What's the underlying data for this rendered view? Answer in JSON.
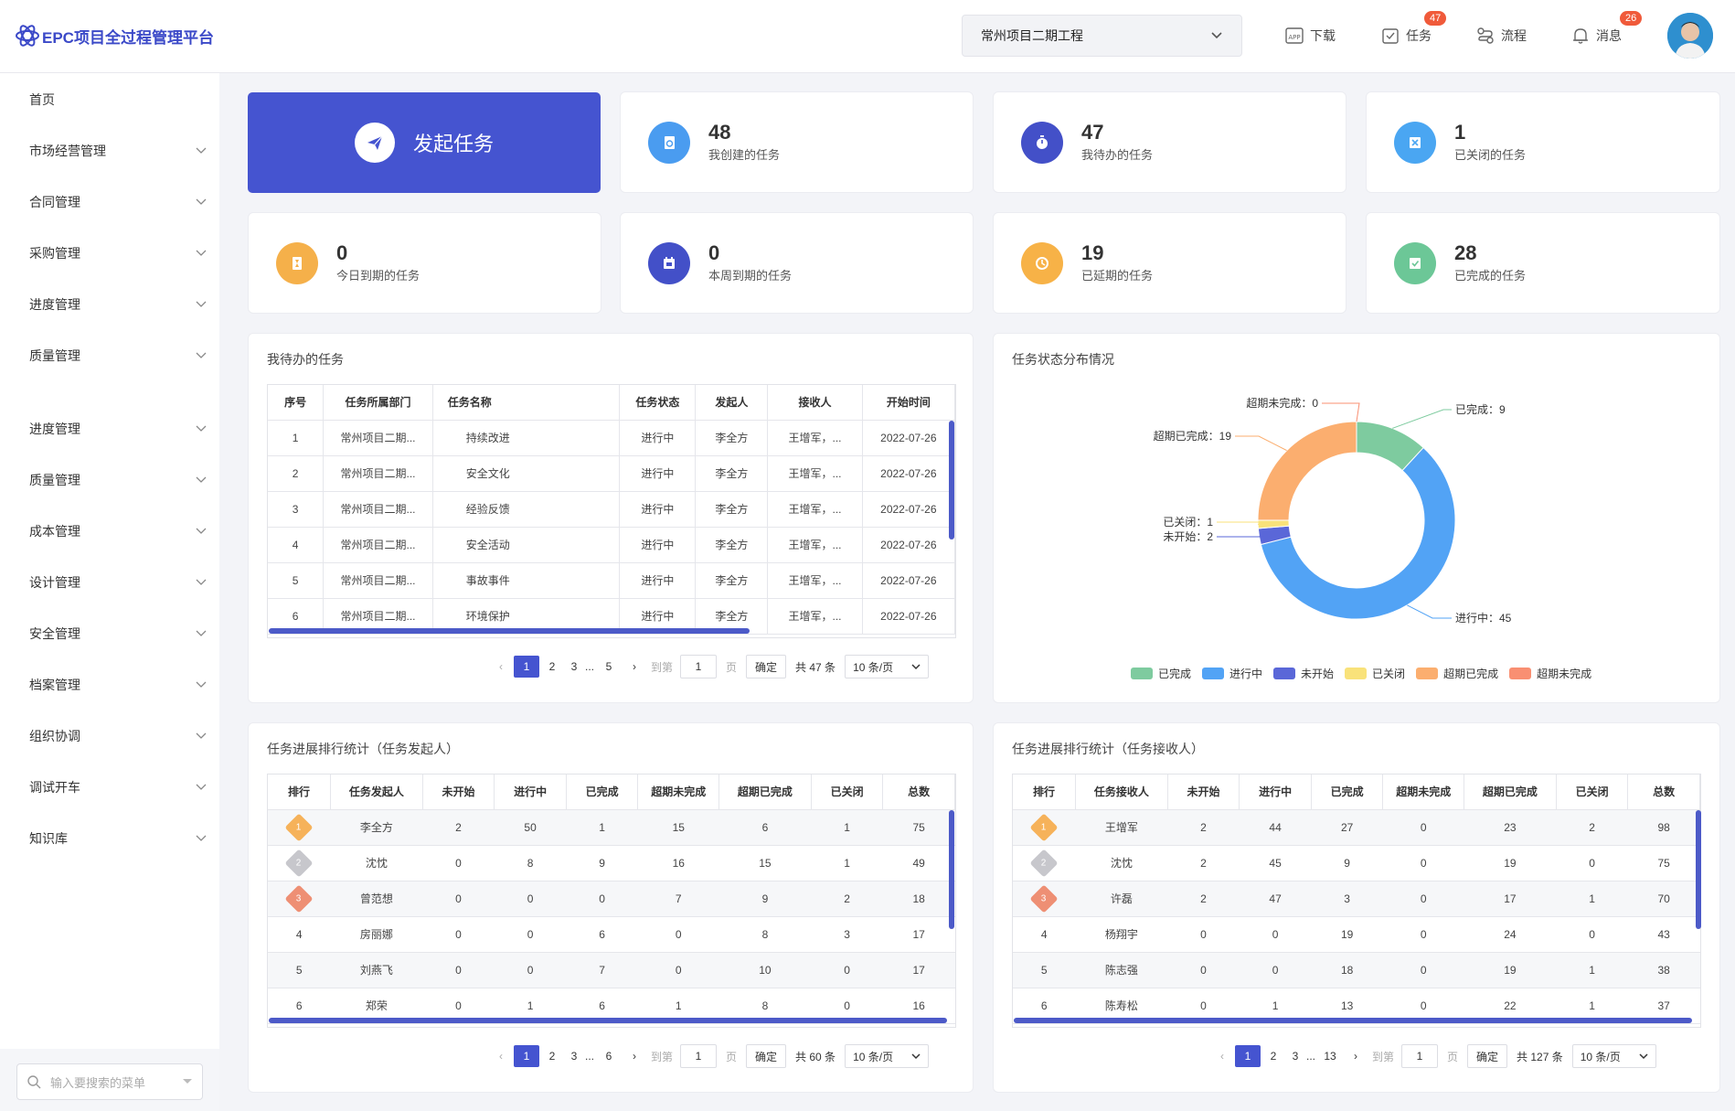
{
  "app": {
    "title": "EPC项目全过程管理平台"
  },
  "header": {
    "project": "常州项目二期工程",
    "download": "下载",
    "tasks": "任务",
    "tasks_badge": "47",
    "flow": "流程",
    "messages": "消息",
    "messages_badge": "26",
    "colors": {
      "brand": "#4554d0",
      "badge": "#f05a3a"
    }
  },
  "sidebar": {
    "items": [
      {
        "label": "首页"
      },
      {
        "label": "市场经营管理"
      },
      {
        "label": "合同管理"
      },
      {
        "label": "采购管理"
      },
      {
        "label": "进度管理"
      },
      {
        "label": "质量管理"
      },
      {
        "label": "进度管理"
      },
      {
        "label": "质量管理"
      },
      {
        "label": "成本管理"
      },
      {
        "label": "设计管理"
      },
      {
        "label": "安全管理"
      },
      {
        "label": "档案管理"
      },
      {
        "label": "组织协调"
      },
      {
        "label": "调试开车"
      },
      {
        "label": "知识库"
      }
    ],
    "search_placeholder": "输入要搜索的菜单"
  },
  "launch": {
    "label": "发起任务"
  },
  "stats": [
    {
      "num": "48",
      "label": "我创建的任务",
      "color": "#4a9cf0",
      "icon": "doc-icon"
    },
    {
      "num": "47",
      "label": "我待办的任务",
      "color": "#4350c8",
      "icon": "timer-icon"
    },
    {
      "num": "1",
      "label": "已关闭的任务",
      "color": "#4aa6f2",
      "icon": "close-doc-icon"
    },
    {
      "num": "0",
      "label": "今日到期的任务",
      "color": "#f5b04a",
      "icon": "hourglass-icon"
    },
    {
      "num": "0",
      "label": "本周到期的任务",
      "color": "#4350c8",
      "icon": "calendar-icon"
    },
    {
      "num": "19",
      "label": "已延期的任务",
      "color": "#f7b247",
      "icon": "clock-icon"
    },
    {
      "num": "28",
      "label": "已完成的任务",
      "color": "#6cc797",
      "icon": "check-doc-icon"
    }
  ],
  "todo": {
    "title": "我待办的任务",
    "headers": [
      "序号",
      "任务所属部门",
      "任务名称",
      "任务状态",
      "发起人",
      "接收人",
      "开始时间"
    ],
    "rows": [
      [
        "1",
        "常州项目二期...",
        "持续改进",
        "进行中",
        "李全方",
        "王增军，...",
        "2022-07-26"
      ],
      [
        "2",
        "常州项目二期...",
        "安全文化",
        "进行中",
        "李全方",
        "王增军，...",
        "2022-07-26"
      ],
      [
        "3",
        "常州项目二期...",
        "经验反馈",
        "进行中",
        "李全方",
        "王增军，...",
        "2022-07-26"
      ],
      [
        "4",
        "常州项目二期...",
        "安全活动",
        "进行中",
        "李全方",
        "王增军，...",
        "2022-07-26"
      ],
      [
        "5",
        "常州项目二期...",
        "事故事件",
        "进行中",
        "李全方",
        "王增军，...",
        "2022-07-26"
      ],
      [
        "6",
        "常州项目二期...",
        "环境保护",
        "进行中",
        "李全方",
        "王增军，...",
        "2022-07-26"
      ]
    ],
    "pager": {
      "pages": [
        "1",
        "2",
        "3",
        "...",
        "5"
      ],
      "goto": "到第",
      "goto_val": "1",
      "page_unit": "页",
      "confirm": "确定",
      "total": "共 47 条",
      "size": "10 条/页"
    }
  },
  "chart_panel": {
    "title": "任务状态分布情况"
  },
  "chart_data": {
    "type": "pie",
    "donut": true,
    "categories": [
      "已完成",
      "进行中",
      "未开始",
      "已关闭",
      "超期已完成",
      "超期未完成"
    ],
    "values": [
      9,
      45,
      2,
      1,
      19,
      0
    ],
    "colors": [
      "#7ecb9f",
      "#52a3f5",
      "#5a67d8",
      "#f9e27a",
      "#fbae6f",
      "#f98f72"
    ],
    "labels": [
      "已完成：9",
      "进行中：45",
      "未开始：2",
      "已关闭：1",
      "超期已完成：19",
      "超期未完成：0"
    ],
    "legend": "bottom"
  },
  "rank_initiator": {
    "title": "任务进展排行统计（任务发起人）",
    "headers": [
      "排行",
      "任务发起人",
      "未开始",
      "进行中",
      "已完成",
      "超期未完成",
      "超期已完成",
      "已关闭",
      "总数"
    ],
    "rows": [
      [
        "1",
        "李全方",
        "2",
        "50",
        "1",
        "15",
        "6",
        "1",
        "75"
      ],
      [
        "2",
        "沈忱",
        "0",
        "8",
        "9",
        "16",
        "15",
        "1",
        "49"
      ],
      [
        "3",
        "曾范想",
        "0",
        "0",
        "0",
        "7",
        "9",
        "2",
        "18"
      ],
      [
        "4",
        "房丽娜",
        "0",
        "0",
        "6",
        "0",
        "8",
        "3",
        "17"
      ],
      [
        "5",
        "刘燕飞",
        "0",
        "0",
        "7",
        "0",
        "10",
        "0",
        "17"
      ],
      [
        "6",
        "郑荣",
        "0",
        "1",
        "6",
        "1",
        "8",
        "0",
        "16"
      ]
    ],
    "pager": {
      "pages": [
        "1",
        "2",
        "3",
        "...",
        "6"
      ],
      "goto": "到第",
      "goto_val": "1",
      "page_unit": "页",
      "confirm": "确定",
      "total": "共 60 条",
      "size": "10 条/页"
    }
  },
  "rank_receiver": {
    "title": "任务进展排行统计（任务接收人）",
    "headers": [
      "排行",
      "任务接收人",
      "未开始",
      "进行中",
      "已完成",
      "超期未完成",
      "超期已完成",
      "已关闭",
      "总数"
    ],
    "rows": [
      [
        "1",
        "王增军",
        "2",
        "44",
        "27",
        "0",
        "23",
        "2",
        "98"
      ],
      [
        "2",
        "沈忱",
        "2",
        "45",
        "9",
        "0",
        "19",
        "0",
        "75"
      ],
      [
        "3",
        "许磊",
        "2",
        "47",
        "3",
        "0",
        "17",
        "1",
        "70"
      ],
      [
        "4",
        "杨翔宇",
        "0",
        "0",
        "19",
        "0",
        "24",
        "0",
        "43"
      ],
      [
        "5",
        "陈志强",
        "0",
        "0",
        "18",
        "0",
        "19",
        "1",
        "38"
      ],
      [
        "6",
        "陈寿松",
        "0",
        "1",
        "13",
        "0",
        "22",
        "1",
        "37"
      ]
    ],
    "pager": {
      "pages": [
        "1",
        "2",
        "3",
        "...",
        "13"
      ],
      "goto": "到第",
      "goto_val": "1",
      "page_unit": "页",
      "confirm": "确定",
      "total": "共 127 条",
      "size": "10 条/页"
    }
  }
}
